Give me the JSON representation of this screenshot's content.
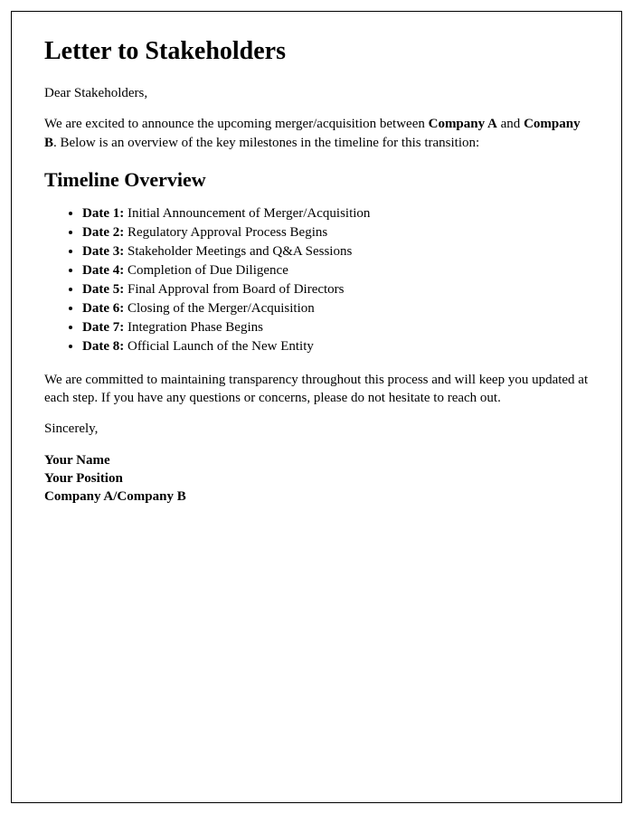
{
  "title": "Letter to Stakeholders",
  "greeting": "Dear Stakeholders,",
  "intro_part1": "We are excited to announce the upcoming merger/acquisition between ",
  "company_a": "Company A",
  "intro_part2": " and ",
  "company_b": "Company B",
  "intro_part3": ". Below is an overview of the key milestones in the timeline for this transition:",
  "timeline_heading": "Timeline Overview",
  "timeline": [
    {
      "label": "Date 1:",
      "text": " Initial Announcement of Merger/Acquisition"
    },
    {
      "label": "Date 2:",
      "text": " Regulatory Approval Process Begins"
    },
    {
      "label": "Date 3:",
      "text": " Stakeholder Meetings and Q&A Sessions"
    },
    {
      "label": "Date 4:",
      "text": " Completion of Due Diligence"
    },
    {
      "label": "Date 5:",
      "text": " Final Approval from Board of Directors"
    },
    {
      "label": "Date 6:",
      "text": " Closing of the Merger/Acquisition"
    },
    {
      "label": "Date 7:",
      "text": " Integration Phase Begins"
    },
    {
      "label": "Date 8:",
      "text": " Official Launch of the New Entity"
    }
  ],
  "closing_para": "We are committed to maintaining transparency throughout this process and will keep you updated at each step. If you have any questions or concerns, please do not hesitate to reach out.",
  "sincerely": "Sincerely,",
  "signer_name": "Your Name",
  "signer_position": "Your Position",
  "signer_company": "Company A/Company B",
  "styles": {
    "border_color": "#000000",
    "background": "#ffffff",
    "font_family": "Times New Roman",
    "h1_fontsize": 28,
    "h2_fontsize": 22,
    "body_fontsize": 15
  }
}
